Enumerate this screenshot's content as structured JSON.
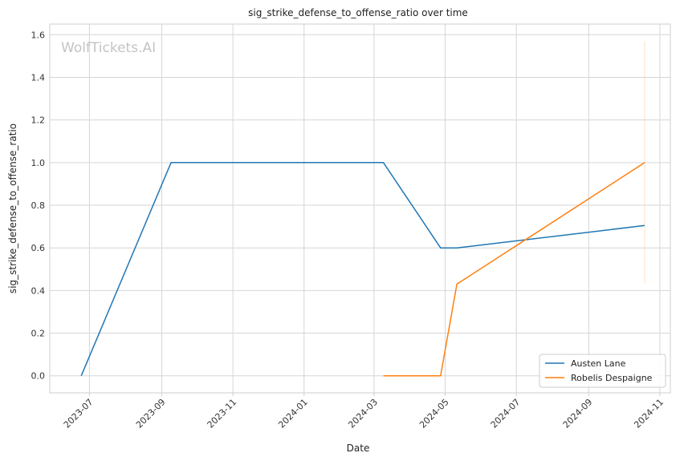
{
  "chart_data": {
    "type": "line",
    "title": "sig_strike_defense_to_offense_ratio over time",
    "xlabel": "Date",
    "ylabel": "sig_strike_defense_to_offense_ratio",
    "watermark": "WolfTickets.AI",
    "x_axis_type": "date",
    "xlim": [
      "2023-05-28",
      "2024-11-10"
    ],
    "ylim": [
      -0.08,
      1.65
    ],
    "x_ticks": [
      "2023-07-01",
      "2023-09-01",
      "2023-11-01",
      "2024-01-01",
      "2024-03-01",
      "2024-05-01",
      "2024-07-01",
      "2024-09-01",
      "2024-11-01"
    ],
    "x_tick_labels": [
      "2023-07",
      "2023-09",
      "2023-11",
      "2024-01",
      "2024-03",
      "2024-05",
      "2024-07",
      "2024-09",
      "2024-11"
    ],
    "y_ticks": [
      0.0,
      0.2,
      0.4,
      0.6,
      0.8,
      1.0,
      1.2,
      1.4,
      1.6
    ],
    "y_tick_labels": [
      "0.0",
      "0.2",
      "0.4",
      "0.6",
      "0.8",
      "1.0",
      "1.2",
      "1.4",
      "1.6"
    ],
    "grid": true,
    "legend_position": "bottom-right",
    "series": [
      {
        "name": "Austen Lane",
        "color": "#1f77b4",
        "x": [
          "2023-06-24",
          "2023-09-09",
          "2024-03-09",
          "2024-04-27",
          "2024-05-11",
          "2024-10-19"
        ],
        "y": [
          0.0,
          1.0,
          1.0,
          0.6,
          0.6,
          0.705
        ]
      },
      {
        "name": "Robelis Despaigne",
        "color": "#ff7f0e",
        "x": [
          "2024-03-09",
          "2024-04-27",
          "2024-05-11",
          "2024-10-19"
        ],
        "y": [
          0.0,
          0.0,
          0.43,
          1.0
        ],
        "band": {
          "x": "2024-10-19",
          "low": 0.43,
          "high": 1.57,
          "color": "#ff7f0e"
        }
      }
    ]
  }
}
